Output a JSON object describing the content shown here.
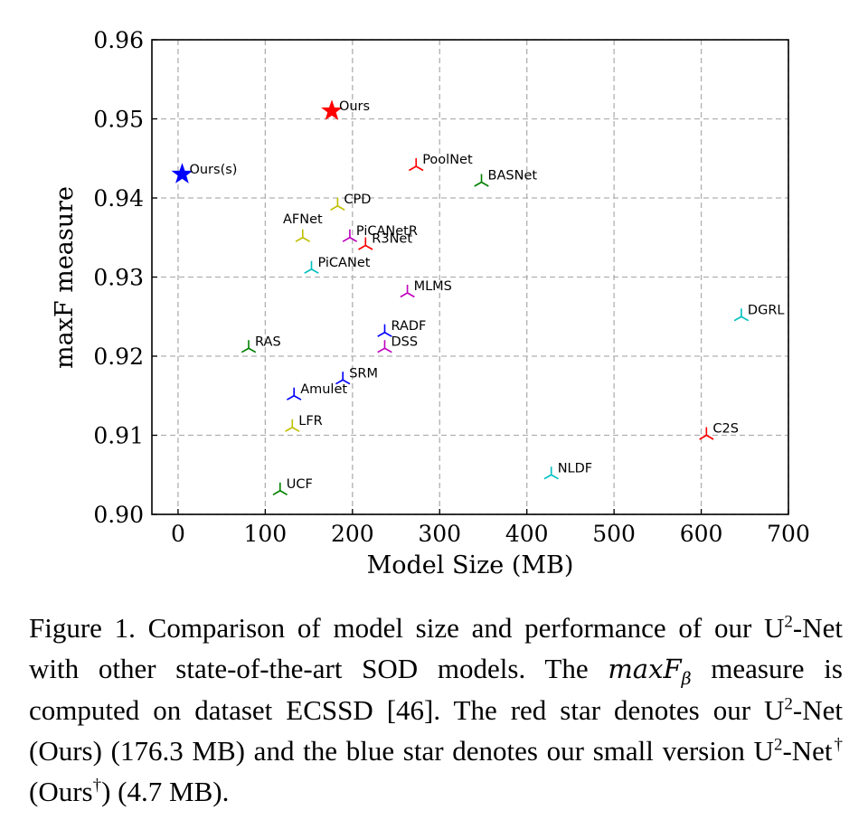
{
  "chart_data": {
    "type": "scatter",
    "xlabel": "Model Size (MB)",
    "ylabel": "maxF measure",
    "xlim": [
      -30,
      700
    ],
    "ylim": [
      0.9,
      0.96
    ],
    "xticks": [
      "0",
      "100",
      "200",
      "300",
      "400",
      "500",
      "600",
      "700"
    ],
    "yticks": [
      "0.90",
      "0.91",
      "0.92",
      "0.93",
      "0.94",
      "0.95",
      "0.96"
    ],
    "grid": true,
    "points": [
      {
        "label": "Ours",
        "x": 176.3,
        "y": 0.951,
        "marker": "star",
        "color": "#ff0000"
      },
      {
        "label": "Ours(s)",
        "x": 4.7,
        "y": 0.943,
        "marker": "star",
        "color": "#0000ff"
      },
      {
        "label": "PoolNet",
        "x": 273,
        "y": 0.944,
        "marker": "tri",
        "color": "#ff0000"
      },
      {
        "label": "BASNet",
        "x": 348,
        "y": 0.942,
        "marker": "tri",
        "color": "#008000"
      },
      {
        "label": "CPD",
        "x": 183,
        "y": 0.939,
        "marker": "tri",
        "color": "#bfbf00"
      },
      {
        "label": "AFNet",
        "x": 143,
        "y": 0.935,
        "marker": "tri",
        "color": "#bfbf00"
      },
      {
        "label": "PiCANetR",
        "x": 197,
        "y": 0.935,
        "marker": "tri",
        "color": "#bf00bf"
      },
      {
        "label": "R3Net",
        "x": 215,
        "y": 0.934,
        "marker": "tri",
        "color": "#ff0000"
      },
      {
        "label": "PiCANet",
        "x": 153,
        "y": 0.931,
        "marker": "tri",
        "color": "#00bfbf"
      },
      {
        "label": "MLMS",
        "x": 263,
        "y": 0.928,
        "marker": "tri",
        "color": "#bf00bf"
      },
      {
        "label": "DGRL",
        "x": 646,
        "y": 0.925,
        "marker": "tri",
        "color": "#00bfbf"
      },
      {
        "label": "RADF",
        "x": 237,
        "y": 0.923,
        "marker": "tri",
        "color": "#0000ff"
      },
      {
        "label": "DSS",
        "x": 237,
        "y": 0.921,
        "marker": "tri",
        "color": "#bf00bf"
      },
      {
        "label": "RAS",
        "x": 81,
        "y": 0.921,
        "marker": "tri",
        "color": "#008000"
      },
      {
        "label": "SRM",
        "x": 189,
        "y": 0.917,
        "marker": "tri",
        "color": "#0000ff"
      },
      {
        "label": "Amulet",
        "x": 133,
        "y": 0.915,
        "marker": "tri",
        "color": "#0000ff"
      },
      {
        "label": "LFR",
        "x": 131,
        "y": 0.911,
        "marker": "tri",
        "color": "#bfbf00"
      },
      {
        "label": "C2S",
        "x": 606,
        "y": 0.91,
        "marker": "tri",
        "color": "#ff0000"
      },
      {
        "label": "NLDF",
        "x": 428,
        "y": 0.905,
        "marker": "tri",
        "color": "#00bfbf"
      },
      {
        "label": "UCF",
        "x": 117,
        "y": 0.903,
        "marker": "tri",
        "color": "#008000"
      }
    ]
  },
  "caption": {
    "prefix": "Figure 1.  Comparison of model size and performance of our U",
    "sup1": "2",
    "part2": "-Net with other state-of-the-art SOD models.  The ",
    "math_main": "maxF",
    "math_sub": "β",
    "part3": " measure is computed on dataset ECSSD [46]. The red star denotes our U",
    "sup2": "2",
    "part4": "-Net (Ours) (176.3 MB) and the blue star denotes our small version U",
    "sup3": "2",
    "part5": "-Net",
    "sup4": "†",
    "part6": " (Ours",
    "sup5": "†",
    "part7": ") (4.7 MB)."
  }
}
